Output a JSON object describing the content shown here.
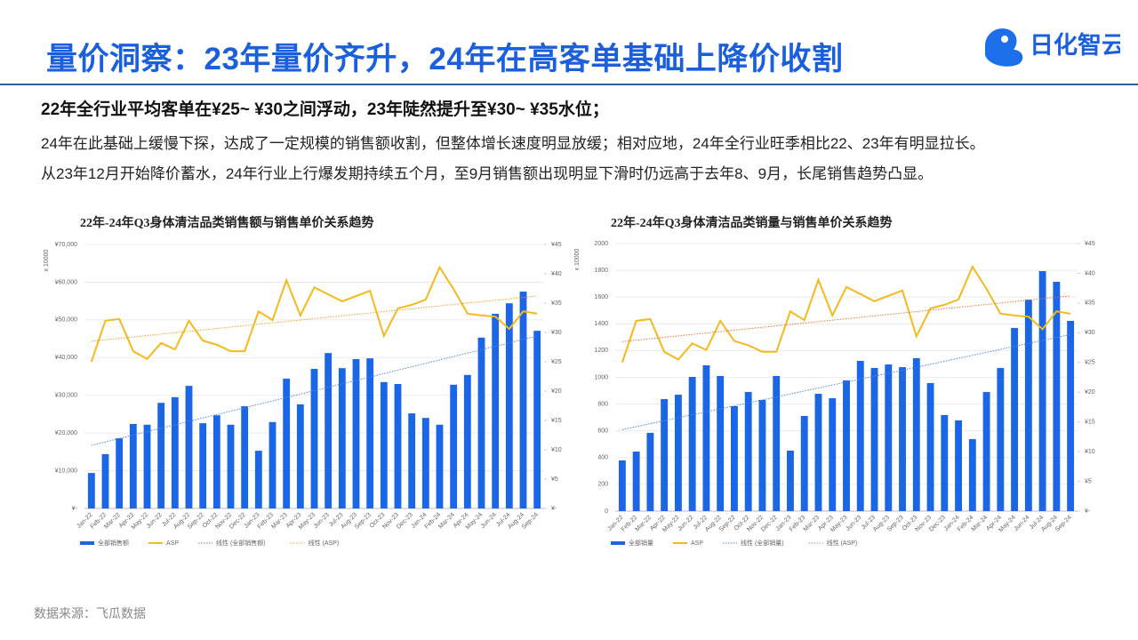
{
  "header": {
    "title": "量价洞察：23年量价齐升，24年在高客单基础上降价收割",
    "logo": "日化智云"
  },
  "summary": {
    "headline": "22年全行业平均客单在¥25~ ¥30之间浮动，23年陡然提升至¥30~ ¥35水位；",
    "lines": [
      "24年在此基础上缓慢下探，达成了一定规模的销售额收割，但整体增长速度明显放缓；相对应地，24年全行业旺季相比22、23年有明显拉长。",
      "从23年12月开始降价蓄水，24年行业上行爆发期持续五个月，至9月销售额出现明显下滑时仍远高于去年8、9月，长尾销售趋势凸显。"
    ]
  },
  "source": "数据来源：飞瓜数据",
  "chart_data": [
    {
      "type": "bar",
      "title": "22年-24年Q3身体清洁品类销售额与销售单价关系趋势",
      "y_unit_label": "x 10000",
      "categories": [
        "Jan-22",
        "Feb-22",
        "Mar-22",
        "Apr-22",
        "May-22",
        "Jun-22",
        "Jul-22",
        "Aug-22",
        "Sep-22",
        "Oct-22",
        "Nov-22",
        "Dec-22",
        "Jan-23",
        "Feb-23",
        "Mar-23",
        "Apr-23",
        "May-23",
        "Jun-23",
        "Jul-23",
        "Aug-23",
        "Sep-23",
        "Oct-23",
        "Nov-23",
        "Dec-23",
        "Jan-24",
        "Feb-24",
        "Mar-24",
        "Apr-24",
        "May-24",
        "Jun-24",
        "Jul-24",
        "Aug-24",
        "Sep-24"
      ],
      "series": [
        {
          "name": "全部销售额",
          "type": "bar",
          "color": "#1a66e6",
          "values": [
            9400,
            14400,
            18600,
            22400,
            22200,
            28000,
            29500,
            32500,
            22600,
            24700,
            22200,
            27100,
            15300,
            22900,
            34400,
            27600,
            37000,
            41200,
            37200,
            39600,
            39800,
            33500,
            33000,
            25200,
            24000,
            22200,
            32800,
            35400,
            45300,
            51600,
            54400,
            57500,
            47100
          ],
          "trendline": {
            "name": "线性 (全部销售额)",
            "color": "#4f86e0"
          }
        },
        {
          "name": "ASP",
          "type": "line",
          "axis": "y2",
          "color": "#f5b91c",
          "values": [
            25.0,
            32.0,
            32.3,
            26.8,
            25.5,
            28.2,
            27.1,
            32.0,
            28.6,
            27.9,
            26.8,
            26.8,
            33.6,
            32.1,
            38.9,
            32.9,
            37.7,
            36.5,
            35.3,
            36.2,
            37.1,
            29.4,
            34.1,
            34.7,
            35.6,
            41.1,
            37.4,
            33.2,
            32.9,
            32.7,
            30.6,
            33.6,
            33.2
          ],
          "trendline": {
            "name": "线性 (ASP)",
            "color": "#f0a028"
          }
        }
      ],
      "ylim": [
        0,
        70000
      ],
      "yticks": [
        {
          "value": 0,
          "label": "¥-"
        },
        {
          "value": 10000,
          "label": "¥10,000"
        },
        {
          "value": 20000,
          "label": "¥20,000"
        },
        {
          "value": 30000,
          "label": "¥30,000"
        },
        {
          "value": 40000,
          "label": "¥40,000"
        },
        {
          "value": 50000,
          "label": "¥50,000"
        },
        {
          "value": 60000,
          "label": "¥60,000"
        },
        {
          "value": 70000,
          "label": "¥70,000"
        }
      ],
      "y2lim": [
        0,
        45
      ],
      "y2ticks": [
        {
          "value": 0,
          "label": "¥-"
        },
        {
          "value": 5,
          "label": "¥5"
        },
        {
          "value": 10,
          "label": "¥10"
        },
        {
          "value": 15,
          "label": "¥15"
        },
        {
          "value": 20,
          "label": "¥20"
        },
        {
          "value": 25,
          "label": "¥25"
        },
        {
          "value": 30,
          "label": "¥30"
        },
        {
          "value": 35,
          "label": "¥35"
        },
        {
          "value": 40,
          "label": "¥40"
        },
        {
          "value": 45,
          "label": "¥45"
        }
      ],
      "grid": true,
      "legend": "bottom"
    },
    {
      "type": "bar",
      "title": "22年-24年Q3身体清洁品类销量与销售单价关系趋势",
      "y_unit_label": "x 10000",
      "categories": [
        "Jan-22",
        "Feb-22",
        "Mar-22",
        "Apr-22",
        "May-22",
        "Jun-22",
        "Jul-22",
        "Aug-22",
        "Sep-22",
        "Oct-22",
        "Nov-22",
        "Dec-22",
        "Jan-23",
        "Feb-23",
        "Mar-23",
        "Apr-23",
        "May-23",
        "Jun-23",
        "Jul-23",
        "Aug-23",
        "Sep-23",
        "Oct-23",
        "Nov-23",
        "Dec-23",
        "Jan-24",
        "Feb-24",
        "Mar-24",
        "Apr-24",
        "May-24",
        "Jun-24",
        "Jul-24",
        "Aug-24",
        "Sep-24"
      ],
      "series": [
        {
          "name": "全部销量",
          "type": "bar",
          "color": "#1a66e6",
          "values": [
            379,
            445,
            585,
            837,
            870,
            1003,
            1090,
            1010,
            784,
            890,
            831,
            1010,
            452,
            711,
            877,
            844,
            977,
            1123,
            1070,
            1096,
            1076,
            1143,
            957,
            718,
            678,
            538,
            890,
            1070,
            1369,
            1581,
            1794,
            1714,
            1422
          ],
          "trendline": {
            "name": "线性 (全部销量)",
            "color": "#4f86e0"
          }
        },
        {
          "name": "ASP",
          "type": "line",
          "axis": "y2",
          "color": "#f5b91c",
          "values": [
            25.0,
            32.0,
            32.3,
            26.8,
            25.5,
            28.2,
            27.1,
            32.0,
            28.6,
            27.9,
            26.8,
            26.8,
            33.6,
            32.1,
            38.9,
            32.9,
            37.7,
            36.5,
            35.3,
            36.2,
            37.1,
            29.4,
            34.1,
            34.7,
            35.6,
            41.1,
            37.4,
            33.2,
            32.9,
            32.7,
            30.6,
            33.6,
            33.2
          ],
          "trendline": {
            "name": "线性 (ASP)",
            "color": "#e8783a"
          }
        }
      ],
      "ylim": [
        0,
        2000
      ],
      "yticks": [
        0,
        200,
        400,
        600,
        800,
        1000,
        1200,
        1400,
        1600,
        1800,
        2000
      ],
      "y2lim": [
        0,
        45
      ],
      "y2ticks": [
        {
          "value": 0,
          "label": "¥-"
        },
        {
          "value": 5,
          "label": "¥5"
        },
        {
          "value": 10,
          "label": "¥10"
        },
        {
          "value": 15,
          "label": "¥15"
        },
        {
          "value": 20,
          "label": "¥20"
        },
        {
          "value": 25,
          "label": "¥25"
        },
        {
          "value": 30,
          "label": "¥30"
        },
        {
          "value": 35,
          "label": "¥35"
        },
        {
          "value": 40,
          "label": "¥40"
        },
        {
          "value": 45,
          "label": "¥45"
        }
      ],
      "grid": true,
      "legend": "bottom"
    }
  ]
}
